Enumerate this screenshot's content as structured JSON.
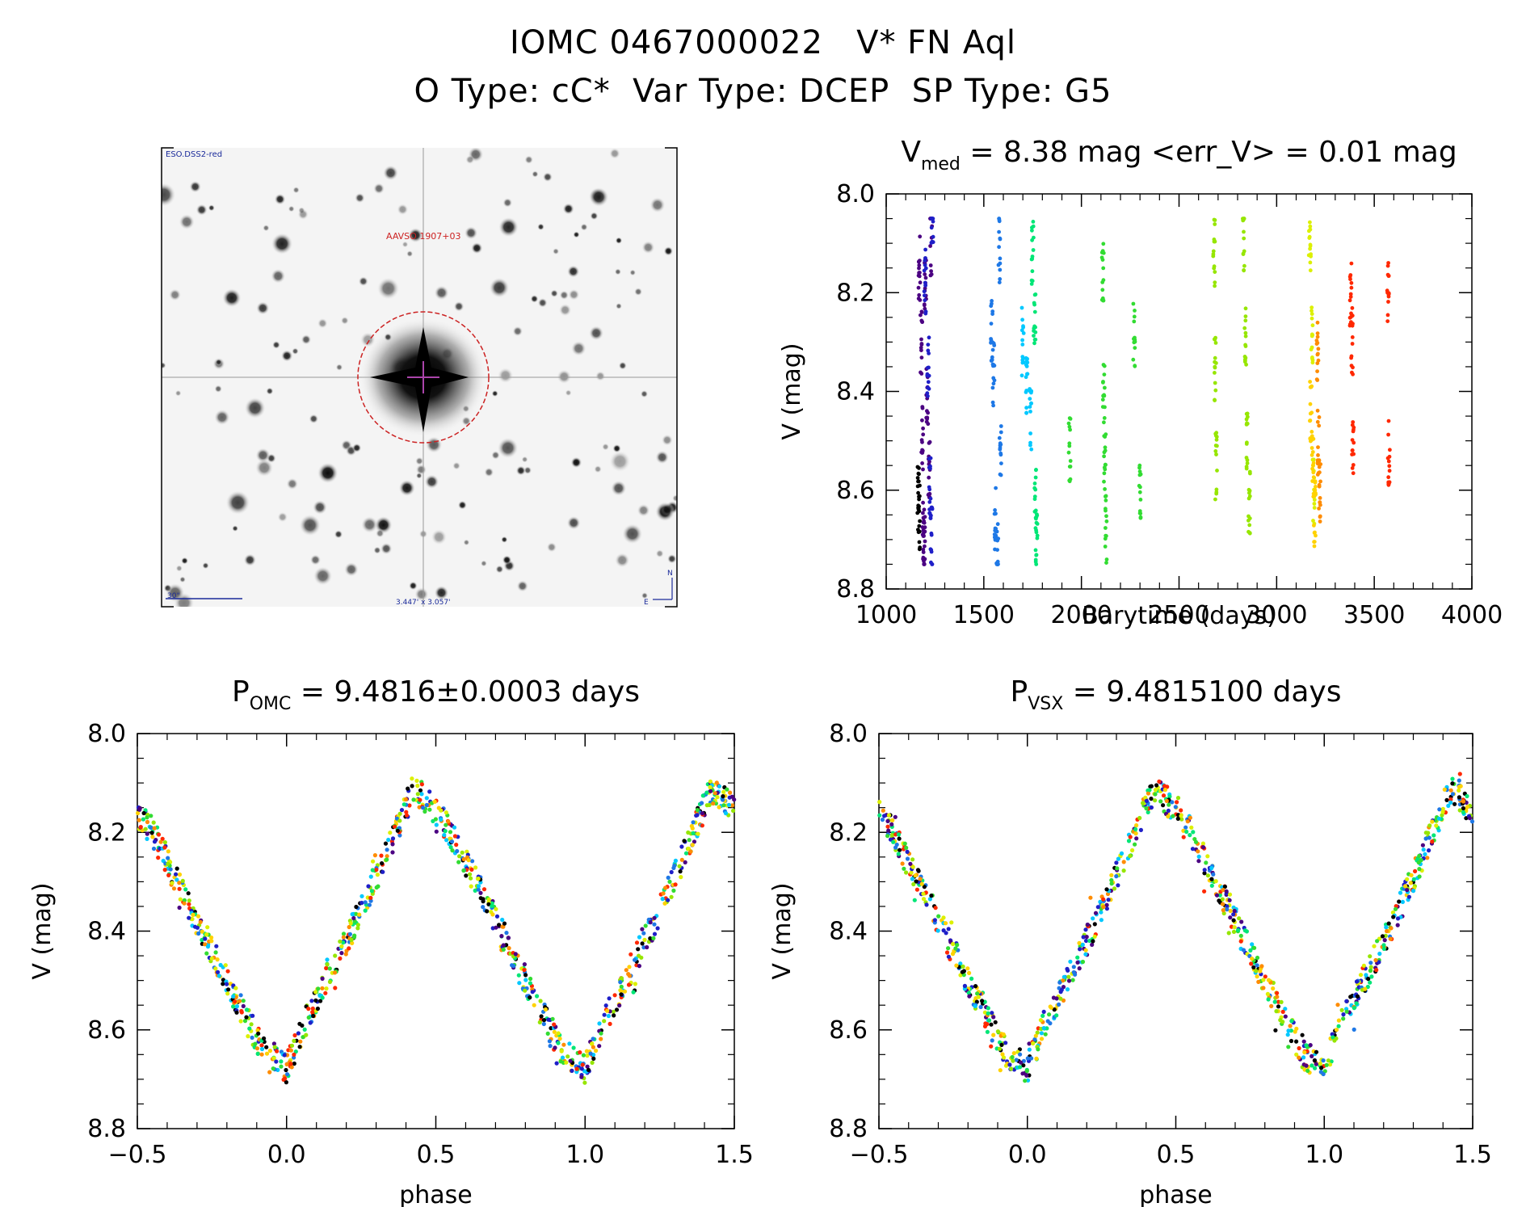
{
  "header": {
    "title_line1": "IOMC 0467000022   V* FN Aql",
    "title_line2": "O Type: cC*  Var Type: DCEP  SP Type: G5"
  },
  "finder": {
    "survey_label": "ESO.DSS2-red",
    "target_label": "AAVSO 1907+03",
    "scale_label": "30\"",
    "fov_label": "3.447' x 3.057'",
    "north_label": "N",
    "east_label": "E"
  },
  "palette": [
    "#000000",
    "#4b0082",
    "#1f1fc8",
    "#1e78e6",
    "#00c8ff",
    "#00e676",
    "#32dc32",
    "#96e600",
    "#dcf000",
    "#ffd200",
    "#ff8c00",
    "#ff2800"
  ],
  "chart_data": [
    {
      "id": "light_curve",
      "type": "scatter",
      "title_main": "V",
      "title_sub": "med",
      "title_rest": " = 8.38 mag <err_V> = 0.01 mag",
      "xlabel": "Barytime (days)",
      "ylabel": "V (mag)",
      "xlim": [
        1000,
        4000
      ],
      "ylim": [
        8.8,
        8.0
      ],
      "xticks": [
        "1000",
        "1500",
        "2000",
        "2500",
        "3000",
        "3500",
        "4000"
      ],
      "yticks": [
        "8.0",
        "8.2",
        "8.4",
        "8.6",
        "8.8"
      ],
      "grid": false,
      "series": [
        {
          "color": "#000000",
          "x": [
            1165,
            1168
          ],
          "y": [
            8.62,
            8.65
          ]
        },
        {
          "color": "#4b0082",
          "x": [
            1170,
            1180,
            1185,
            1190,
            1195,
            1200,
            1210,
            1220,
            1230
          ],
          "y": [
            8.15,
            8.3,
            8.5,
            8.68,
            8.72,
            8.2,
            8.4,
            8.55,
            8.1
          ]
        },
        {
          "color": "#1f1fc8",
          "x": [
            1200,
            1215,
            1225,
            1232,
            1236
          ],
          "y": [
            8.18,
            8.35,
            8.6,
            8.7,
            8.05
          ]
        },
        {
          "color": "#1e78e6",
          "x": [
            1540,
            1550,
            1560,
            1570,
            1580,
            1585
          ],
          "y": [
            8.27,
            8.36,
            8.65,
            8.72,
            8.11,
            8.5
          ]
        },
        {
          "color": "#00c8ff",
          "x": [
            1700,
            1720,
            1740
          ],
          "y": [
            8.3,
            8.38,
            8.45
          ]
        },
        {
          "color": "#00e676",
          "x": [
            1750,
            1760,
            1765,
            1770
          ],
          "y": [
            8.12,
            8.25,
            8.62,
            8.7
          ]
        },
        {
          "color": "#32dc32",
          "x": [
            1940,
            2110,
            2115,
            2120,
            2125,
            2270,
            2300
          ],
          "y": [
            8.52,
            8.15,
            8.4,
            8.55,
            8.68,
            8.29,
            8.6
          ]
        },
        {
          "color": "#96e600",
          "x": [
            2680,
            2685,
            2690,
            2830,
            2840,
            2850,
            2860
          ],
          "y": [
            8.12,
            8.35,
            8.55,
            8.1,
            8.3,
            8.5,
            8.62
          ]
        },
        {
          "color": "#dcf000",
          "x": [
            3170,
            3180,
            3190
          ],
          "y": [
            8.12,
            8.3,
            8.6
          ]
        },
        {
          "color": "#ffd200",
          "x": [
            3175,
            3185,
            3195
          ],
          "y": [
            8.45,
            8.55,
            8.65
          ]
        },
        {
          "color": "#ff8c00",
          "x": [
            3210,
            3215,
            3220
          ],
          "y": [
            8.32,
            8.5,
            8.6
          ]
        },
        {
          "color": "#ff2800",
          "x": [
            3380,
            3385,
            3390,
            3570,
            3575
          ],
          "y": [
            8.2,
            8.3,
            8.52,
            8.2,
            8.52
          ]
        }
      ]
    },
    {
      "id": "phase_omc",
      "type": "scatter",
      "title_main": "P",
      "title_sub": "OMC",
      "title_rest": " = 9.4816±0.0003 days",
      "xlabel": "phase",
      "ylabel": "V (mag)",
      "xlim": [
        -0.5,
        1.5
      ],
      "ylim": [
        8.8,
        8.0
      ],
      "xticks": [
        "−0.5",
        "0.0",
        "0.5",
        "1.0",
        "1.5"
      ],
      "yticks": [
        "8.0",
        "8.2",
        "8.4",
        "8.6",
        "8.8"
      ],
      "grid": false,
      "curve": {
        "phase": [
          0.0,
          0.05,
          0.15,
          0.25,
          0.35,
          0.42,
          0.45,
          0.55,
          0.65,
          0.75,
          0.85,
          0.93,
          1.0
        ],
        "mag": [
          8.68,
          8.6,
          8.48,
          8.36,
          8.22,
          8.12,
          8.12,
          8.2,
          8.32,
          8.44,
          8.56,
          8.65,
          8.68
        ]
      }
    },
    {
      "id": "phase_vsx",
      "type": "scatter",
      "title_main": "P",
      "title_sub": "VSX",
      "title_rest": " = 9.4815100 days",
      "xlabel": "phase",
      "ylabel": "V (mag)",
      "xlim": [
        -0.5,
        1.5
      ],
      "ylim": [
        8.8,
        8.0
      ],
      "xticks": [
        "−0.5",
        "0.0",
        "0.5",
        "1.0",
        "1.5"
      ],
      "yticks": [
        "8.0",
        "8.2",
        "8.4",
        "8.6",
        "8.8"
      ],
      "grid": false,
      "curve": {
        "phase": [
          0.0,
          0.05,
          0.15,
          0.25,
          0.35,
          0.42,
          0.45,
          0.55,
          0.65,
          0.75,
          0.85,
          0.93,
          1.0
        ],
        "mag": [
          8.68,
          8.6,
          8.48,
          8.36,
          8.22,
          8.12,
          8.12,
          8.2,
          8.32,
          8.44,
          8.56,
          8.65,
          8.68
        ]
      }
    }
  ]
}
